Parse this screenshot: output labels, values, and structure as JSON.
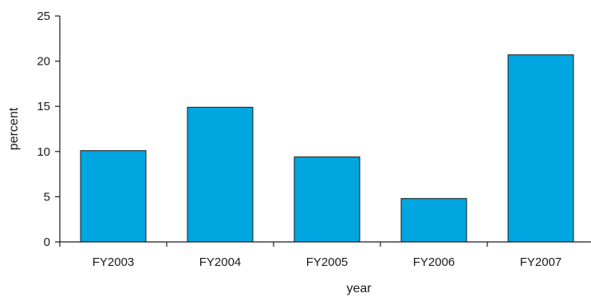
{
  "chart_data": {
    "type": "bar",
    "categories": [
      "FY2003",
      "FY2004",
      "FY2005",
      "FY2006",
      "FY2007"
    ],
    "values": [
      10.1,
      14.9,
      9.4,
      4.8,
      20.7
    ],
    "xlabel": "year",
    "ylabel": "percent",
    "ylim": [
      0,
      25
    ],
    "yticks": [
      0,
      5,
      10,
      15,
      20,
      25
    ],
    "grid": false,
    "bar_color": "#00a6e0",
    "bar_edge_color": "#1a1a1a"
  }
}
